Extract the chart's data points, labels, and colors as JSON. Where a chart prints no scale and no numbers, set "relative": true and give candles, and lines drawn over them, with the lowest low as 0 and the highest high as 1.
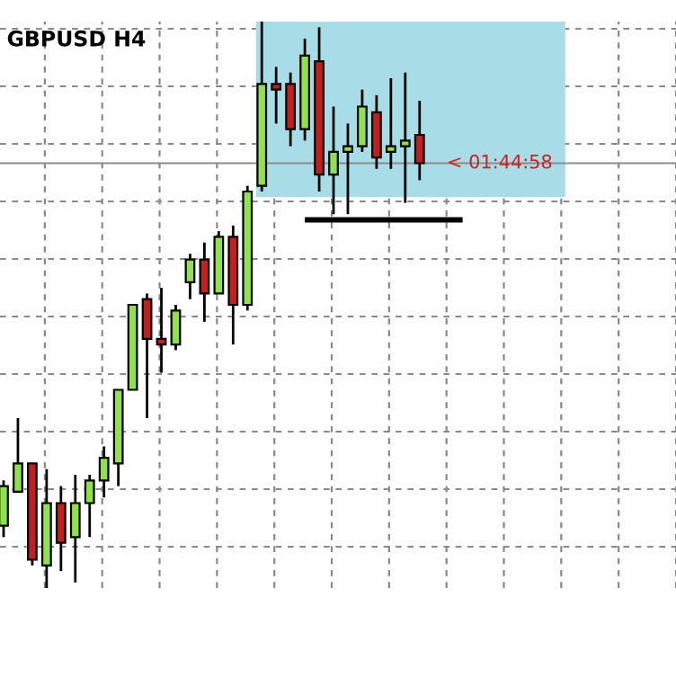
{
  "chart_data": {
    "type": "candlestick",
    "title": "GBPUSD H4",
    "relative": true,
    "grid": true,
    "categories": [
      null,
      null,
      null,
      null,
      null,
      null,
      null,
      null,
      null,
      null,
      null,
      null,
      null,
      null,
      null,
      null,
      null,
      null,
      null,
      null,
      null,
      null,
      null,
      null,
      null,
      null,
      null,
      null,
      null,
      null
    ],
    "ohlc": [
      [
        0.11,
        0.19,
        0.09,
        0.18
      ],
      [
        0.17,
        0.3,
        0.17,
        0.22
      ],
      [
        0.22,
        0.22,
        0.04,
        0.05
      ],
      [
        0.04,
        0.21,
        0,
        0.15
      ],
      [
        0.15,
        0.18,
        0.03,
        0.08
      ],
      [
        0.09,
        0.2,
        0.01,
        0.15
      ],
      [
        0.15,
        0.2,
        0.09,
        0.19
      ],
      [
        0.19,
        0.25,
        0.16,
        0.23
      ],
      [
        0.22,
        0.35,
        0.18,
        0.35
      ],
      [
        0.35,
        0.5,
        0.35,
        0.5
      ],
      [
        0.51,
        0.52,
        0.3,
        0.44
      ],
      [
        0.44,
        0.53,
        0.38,
        0.43
      ],
      [
        0.43,
        0.5,
        0.42,
        0.49
      ],
      [
        0.54,
        0.59,
        0.51,
        0.58
      ],
      [
        0.58,
        0.61,
        0.47,
        0.52
      ],
      [
        0.52,
        0.63,
        0.52,
        0.62
      ],
      [
        0.62,
        0.64,
        0.43,
        0.5
      ],
      [
        0.5,
        0.71,
        0.49,
        0.7
      ],
      [
        0.71,
        1,
        0.7,
        0.89
      ],
      [
        0.89,
        0.92,
        0.82,
        0.88
      ],
      [
        0.89,
        0.91,
        0.78,
        0.81
      ],
      [
        0.81,
        0.97,
        0.79,
        0.94
      ],
      [
        0.93,
        0.99,
        0.7,
        0.73
      ],
      [
        0.73,
        0.85,
        0.66,
        0.77
      ],
      [
        0.77,
        0.82,
        0.66,
        0.78
      ],
      [
        0.78,
        0.88,
        0.77,
        0.85
      ],
      [
        0.84,
        0.87,
        0.74,
        0.76
      ],
      [
        0.77,
        0.9,
        0.74,
        0.78
      ],
      [
        0.78,
        0.91,
        0.68,
        0.79
      ],
      [
        0.8,
        0.86,
        0.72,
        0.75
      ]
    ],
    "colors": [
      "#90e050",
      "#90e050",
      "#c02020",
      "#90e050",
      "#c02020",
      "#90e050",
      "#90e050",
      "#90e050",
      "#90e050",
      "#90e050",
      "#c02020",
      "#c02020",
      "#90e050",
      "#90e050",
      "#c02020",
      "#90e050",
      "#c02020",
      "#90e050",
      "#90e050",
      "#c02020",
      "#c02020",
      "#90e050",
      "#c02020",
      "#90e050",
      "#90e050",
      "#90e050",
      "#c02020",
      "#90e050",
      "#90e050",
      "#c02020"
    ],
    "bands": [
      {
        "axis": "y",
        "from": 0.69,
        "to": 1,
        "color": "#a8dce6"
      }
    ],
    "ref_lines": [
      {
        "axis": "y",
        "value": 0.75,
        "color": "#8c8c8c",
        "label": "< 01:44:58"
      },
      {
        "axis": "y",
        "value": 0.65,
        "color": "#000000"
      }
    ]
  }
}
